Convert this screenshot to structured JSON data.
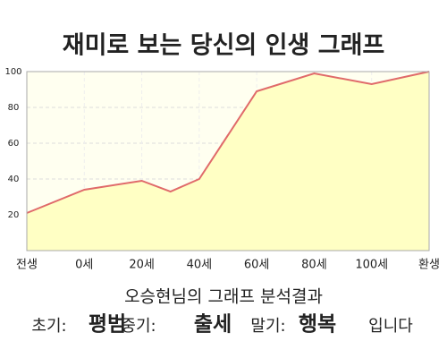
{
  "chart_data": {
    "type": "area",
    "title": "재미로 보는 당신의 인생 그래프",
    "x": [
      -20,
      0,
      20,
      30,
      40,
      60,
      80,
      100,
      120
    ],
    "values": [
      21,
      34,
      39,
      33,
      40,
      89,
      99,
      93,
      100
    ],
    "color": "#e06a6a",
    "fill": "#ffffc4",
    "background": "#fffff0",
    "xlim": [
      -20,
      120
    ],
    "xticks": [
      {
        "value": -20,
        "label": "전생"
      },
      {
        "value": 0,
        "label": "0세"
      },
      {
        "value": 20,
        "label": "20세"
      },
      {
        "value": 40,
        "label": "40세"
      },
      {
        "value": 60,
        "label": "60세"
      },
      {
        "value": 80,
        "label": "80세"
      },
      {
        "value": 100,
        "label": "100세"
      },
      {
        "value": 120,
        "label": "환생"
      }
    ],
    "ylim": [
      0,
      100
    ],
    "yticks": [
      20,
      40,
      60,
      80,
      100
    ],
    "grid": true
  },
  "summary": {
    "title": "오승현님의 그래프 분석결과",
    "items": [
      {
        "label": "초기:",
        "value": "평범"
      },
      {
        "label": "중기:",
        "value": "출세"
      },
      {
        "label": "말기:",
        "value": "행복"
      }
    ],
    "ending": "입니다"
  }
}
